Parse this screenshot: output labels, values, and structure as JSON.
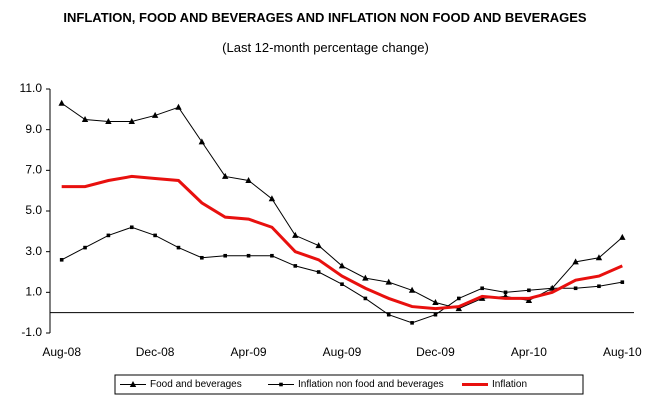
{
  "chart_data": {
    "type": "line",
    "title": "INFLATION, FOOD AND BEVERAGES AND INFLATION NON FOOD AND BEVERAGES",
    "subtitle": "(Last 12-month percentage change)",
    "categories": [
      "Aug-08",
      null,
      null,
      null,
      "Dec-08",
      null,
      null,
      null,
      "Apr-09",
      null,
      null,
      null,
      "Aug-09",
      null,
      null,
      null,
      "Dec-09",
      null,
      null,
      null,
      "Apr-10",
      null,
      null,
      null,
      "Aug-10"
    ],
    "series": [
      {
        "name": "Food and beverages",
        "color": "#000000",
        "marker": "triangle",
        "width": 1,
        "values": [
          10.3,
          9.5,
          9.4,
          9.4,
          9.7,
          10.1,
          8.4,
          6.7,
          6.5,
          5.6,
          3.8,
          3.3,
          2.3,
          1.7,
          1.5,
          1.1,
          0.5,
          0.2,
          0.7,
          0.8,
          0.6,
          1.2,
          2.5,
          2.7,
          3.7
        ]
      },
      {
        "name": "Inflation non food and beverages",
        "color": "#000000",
        "marker": "square",
        "width": 1,
        "values": [
          2.6,
          3.2,
          3.8,
          4.2,
          3.8,
          3.2,
          2.7,
          2.8,
          2.8,
          2.8,
          2.3,
          2.0,
          1.4,
          0.7,
          -0.1,
          -0.5,
          -0.1,
          0.7,
          1.2,
          1.0,
          1.1,
          1.2,
          1.2,
          1.3,
          1.5
        ]
      },
      {
        "name": "Inflation",
        "color": "#e8100e",
        "marker": "none",
        "width": 3,
        "values": [
          6.2,
          6.2,
          6.5,
          6.7,
          6.6,
          6.5,
          5.4,
          4.7,
          4.6,
          4.2,
          3.0,
          2.6,
          1.8,
          1.2,
          0.7,
          0.3,
          0.2,
          0.3,
          0.8,
          0.7,
          0.7,
          1.0,
          1.6,
          1.8,
          2.3
        ]
      }
    ],
    "ylim": [
      -1,
      11
    ],
    "yticks": [
      {
        "value": -1,
        "label": "-1.0"
      },
      {
        "value": 1,
        "label": "1.0"
      },
      {
        "value": 3,
        "label": "3.0"
      },
      {
        "value": 5,
        "label": "5.0"
      },
      {
        "value": 7,
        "label": "7.0"
      },
      {
        "value": 9,
        "label": "9.0"
      },
      {
        "value": 11,
        "label": "11.0"
      }
    ],
    "grid": false,
    "legend": "bottom"
  }
}
